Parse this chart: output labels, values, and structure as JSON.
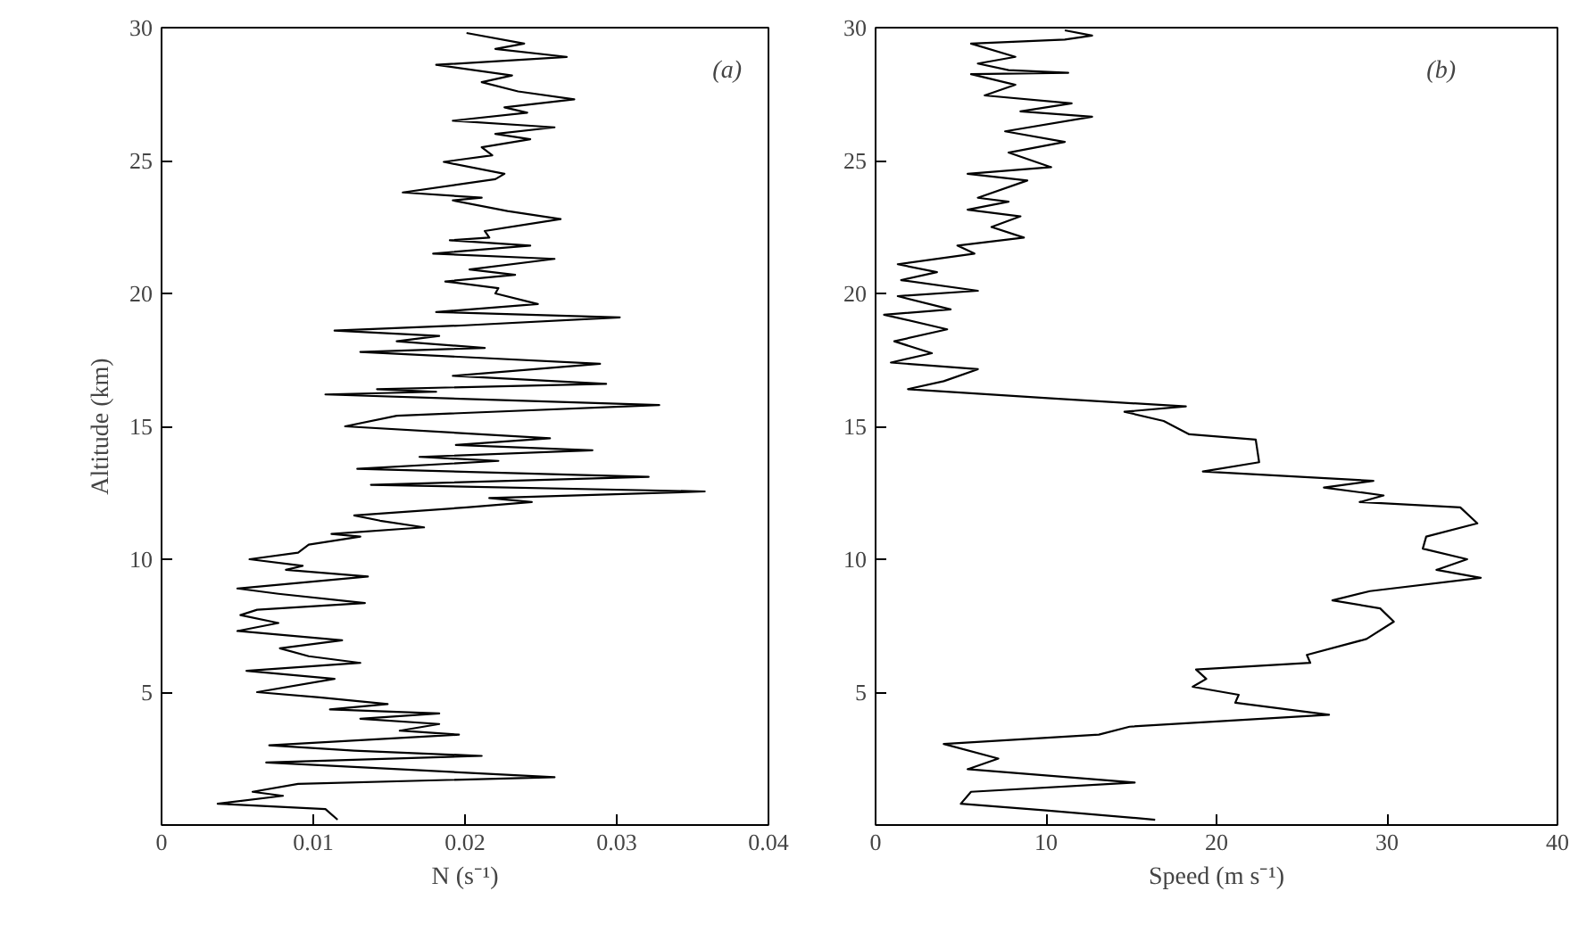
{
  "chart_data": [
    {
      "type": "line",
      "xlabel": "N (s⁻¹)",
      "ylabel": "Altitude (km)",
      "annotations": [
        "(a)"
      ],
      "xlim": [
        0,
        0.04
      ],
      "ylim": [
        0,
        30
      ],
      "xticks": [
        0,
        0.01,
        0.02,
        0.03,
        0.04
      ],
      "yticks": [
        5,
        10,
        15,
        20,
        25,
        30
      ],
      "series": [
        {
          "color": "#000000",
          "x": [
            0.0201,
            0.0239,
            0.022,
            0.0267,
            0.0181,
            0.0231,
            0.0211,
            0.0235,
            0.0272,
            0.0226,
            0.0241,
            0.0192,
            0.0259,
            0.022,
            0.0243,
            0.0211,
            0.0218,
            0.0186,
            0.0226,
            0.022,
            0.0159,
            0.0211,
            0.0192,
            0.0228,
            0.0263,
            0.0213,
            0.0216,
            0.019,
            0.0243,
            0.0179,
            0.0259,
            0.0203,
            0.0233,
            0.0187,
            0.0222,
            0.022,
            0.0248,
            0.0181,
            0.0302,
            0.02,
            0.0114,
            0.0183,
            0.0155,
            0.0213,
            0.0131,
            0.0289,
            0.0192,
            0.0293,
            0.0142,
            0.0181,
            0.0108,
            0.0328,
            0.0155,
            0.0121,
            0.0256,
            0.0194,
            0.0284,
            0.017,
            0.0222,
            0.0129,
            0.0321,
            0.0138,
            0.0358,
            0.0216,
            0.0244,
            0.0201,
            0.0127,
            0.0144,
            0.0173,
            0.0112,
            0.0131,
            0.0097,
            0.009,
            0.0058,
            0.0093,
            0.0082,
            0.0136,
            0.005,
            0.0077,
            0.0134,
            0.0063,
            0.0052,
            0.0077,
            0.005,
            0.0119,
            0.0078,
            0.0097,
            0.0131,
            0.0056,
            0.0114,
            0.0063,
            0.0104,
            0.0149,
            0.0111,
            0.0183,
            0.0131,
            0.0183,
            0.0157,
            0.0196,
            0.0071,
            0.0127,
            0.0211,
            0.0069,
            0.0259,
            0.009,
            0.006,
            0.008,
            0.0037,
            0.0108,
            0.0116
          ],
          "values": [
            29.8,
            29.4,
            29.2,
            28.9,
            28.6,
            28.2,
            27.95,
            27.6,
            27.3,
            27.0,
            26.8,
            26.5,
            26.25,
            26.0,
            25.8,
            25.5,
            25.2,
            24.95,
            24.5,
            24.3,
            23.8,
            23.6,
            23.5,
            23.1,
            22.8,
            22.35,
            22.1,
            22.0,
            21.8,
            21.5,
            21.3,
            20.9,
            20.7,
            20.45,
            20.2,
            20.0,
            19.6,
            19.3,
            19.1,
            18.8,
            18.6,
            18.4,
            18.2,
            17.95,
            17.8,
            17.35,
            16.9,
            16.6,
            16.4,
            16.3,
            16.2,
            15.8,
            15.4,
            15.0,
            14.55,
            14.3,
            14.1,
            13.85,
            13.7,
            13.4,
            13.1,
            12.8,
            12.55,
            12.3,
            12.15,
            11.95,
            11.65,
            11.45,
            11.2,
            10.95,
            10.85,
            10.55,
            10.25,
            10.0,
            9.75,
            9.6,
            9.35,
            8.9,
            8.7,
            8.35,
            8.1,
            7.9,
            7.6,
            7.3,
            6.95,
            6.65,
            6.35,
            6.1,
            5.8,
            5.5,
            5.0,
            4.8,
            4.55,
            4.35,
            4.2,
            4.0,
            3.8,
            3.55,
            3.4,
            3.0,
            2.8,
            2.6,
            2.35,
            1.8,
            1.55,
            1.25,
            1.1,
            0.8,
            0.6,
            0.2
          ]
        }
      ]
    },
    {
      "type": "line",
      "xlabel": "Speed (m s⁻¹)",
      "annotations": [
        "(b)"
      ],
      "xlim": [
        0,
        40
      ],
      "ylim": [
        0,
        30
      ],
      "xticks": [
        0,
        10,
        20,
        30,
        40
      ],
      "yticks": [
        5,
        10,
        15,
        20,
        25,
        30
      ],
      "series": [
        {
          "color": "#000000",
          "x": [
            11.1,
            12.7,
            11.1,
            5.6,
            8.2,
            6.0,
            7.8,
            11.3,
            5.6,
            8.2,
            6.4,
            11.5,
            8.5,
            12.7,
            7.6,
            11.1,
            7.8,
            10.3,
            5.4,
            8.9,
            6.0,
            7.8,
            5.4,
            8.5,
            6.8,
            8.7,
            4.8,
            5.8,
            1.3,
            3.6,
            1.5,
            6.0,
            1.3,
            4.4,
            0.5,
            4.2,
            1.1,
            3.3,
            0.9,
            6.0,
            4.0,
            1.9,
            10.3,
            18.2,
            14.6,
            16.9,
            18.4,
            22.3,
            22.5,
            19.2,
            29.2,
            26.3,
            29.8,
            28.4,
            34.3,
            35.3,
            32.3,
            32.1,
            34.7,
            32.9,
            35.5,
            29.0,
            26.8,
            29.6,
            30.4,
            28.8,
            25.3,
            25.5,
            18.8,
            19.4,
            18.6,
            21.3,
            21.1,
            26.6,
            14.9,
            13.1,
            4.0,
            7.2,
            5.4,
            15.2,
            5.6,
            5.0,
            10.0,
            16.4
          ],
          "values": [
            29.9,
            29.7,
            29.55,
            29.4,
            28.9,
            28.65,
            28.4,
            28.3,
            28.25,
            27.85,
            27.45,
            27.15,
            26.85,
            26.65,
            26.1,
            25.7,
            25.3,
            24.75,
            24.5,
            24.25,
            23.6,
            23.45,
            23.15,
            22.9,
            22.5,
            22.1,
            21.8,
            21.5,
            21.1,
            20.8,
            20.5,
            20.1,
            19.9,
            19.4,
            19.2,
            18.65,
            18.2,
            17.75,
            17.4,
            17.15,
            16.7,
            16.4,
            16.05,
            15.75,
            15.55,
            15.2,
            14.7,
            14.5,
            13.65,
            13.3,
            12.95,
            12.7,
            12.4,
            12.15,
            11.95,
            11.35,
            10.85,
            10.4,
            10.0,
            9.6,
            9.3,
            8.8,
            8.45,
            8.15,
            7.65,
            7.0,
            6.4,
            6.1,
            5.85,
            5.5,
            5.2,
            4.9,
            4.6,
            4.15,
            3.7,
            3.4,
            3.05,
            2.5,
            2.1,
            1.6,
            1.25,
            0.8,
            0.55,
            0.2
          ]
        }
      ]
    }
  ]
}
